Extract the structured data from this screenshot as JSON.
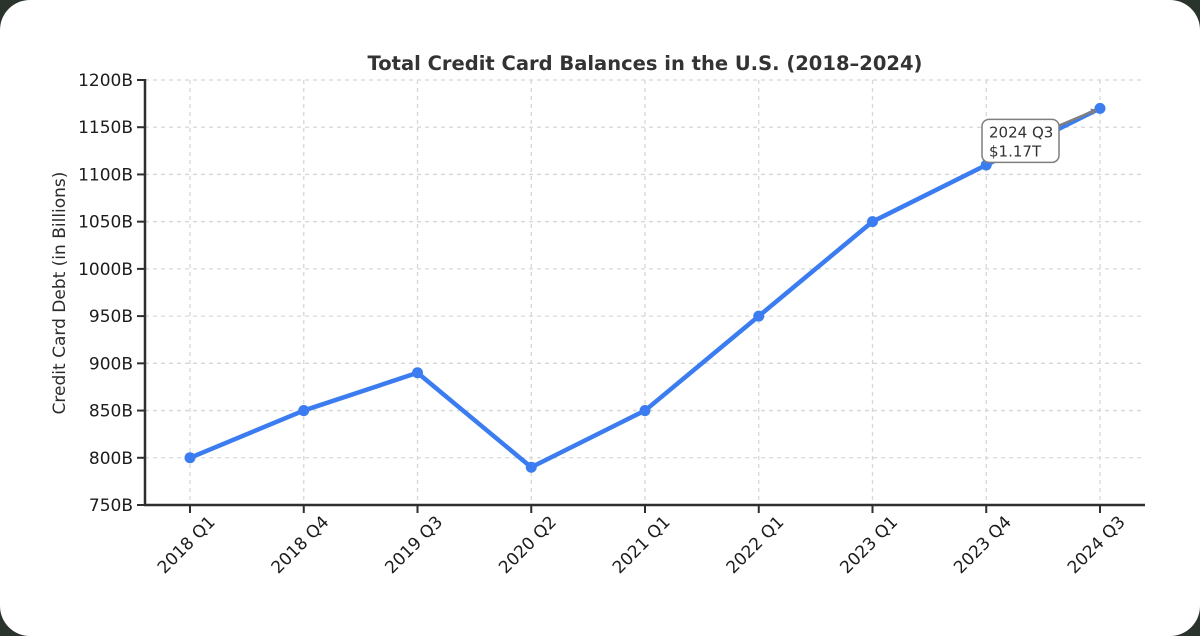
{
  "page": {
    "background_color": "#2b332d",
    "card_color": "#ffffff"
  },
  "chart_data": {
    "type": "line",
    "title": "Total Credit Card Balances in the U.S. (2018–2024)",
    "xlabel": "",
    "ylabel": "Credit Card Debt (in Billions)",
    "categories": [
      "2018 Q1",
      "2018 Q4",
      "2019 Q3",
      "2020 Q2",
      "2021 Q1",
      "2022 Q1",
      "2023 Q1",
      "2023 Q4",
      "2024 Q3"
    ],
    "values": [
      800,
      850,
      890,
      790,
      850,
      950,
      1050,
      1110,
      1170
    ],
    "unit": "B",
    "ylim": [
      750,
      1200
    ],
    "ytick_step": 50,
    "ytick_labels": [
      "750B",
      "800B",
      "850B",
      "900B",
      "950B",
      "1000B",
      "1050B",
      "1100B",
      "1150B",
      "1200B"
    ],
    "grid": true,
    "grid_style": "dashed",
    "grid_color": "#d7d7d7",
    "line_color": "#3b7df0",
    "marker_color": "#3b7df0",
    "axis_color": "#2e2e2e",
    "legend": "none",
    "annotation": {
      "label_line1": "2024 Q3",
      "label_line2": "$1.17T",
      "target_category": "2024 Q3",
      "target_value": 1170,
      "box_fill": "#ffffff",
      "box_border": "#7f7f7f",
      "arrow_color": "#7f7f7f"
    }
  }
}
